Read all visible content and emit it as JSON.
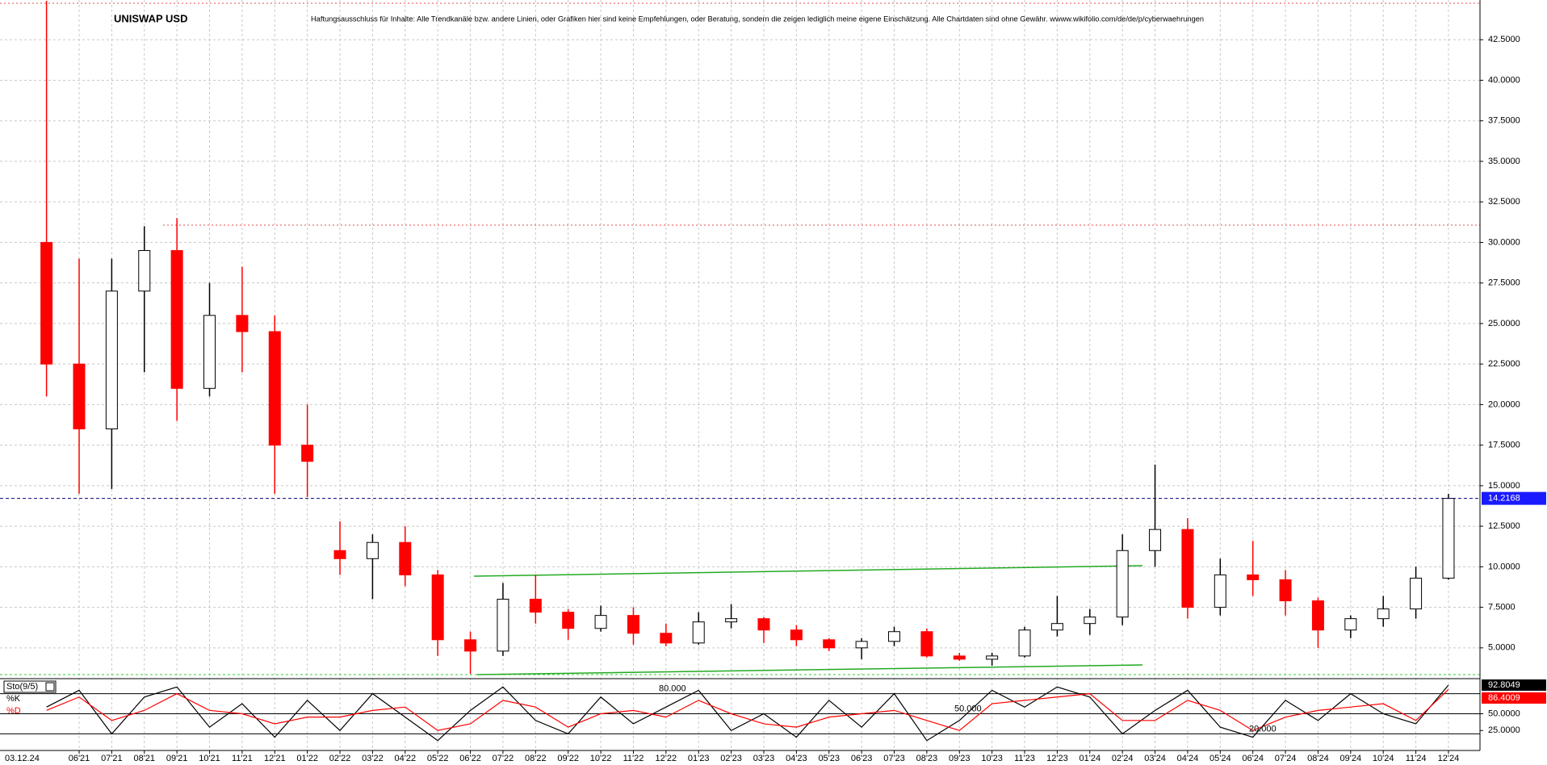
{
  "chart_data": [
    {
      "type": "candlestick",
      "title": "UNISWAP USD",
      "date": "03.12.24",
      "disclaimer": "Haftungsausschluss für Inhalte: Alle Trendkanäle bzw. andere Linien, oder Grafiken hier sind keine Empfehlungen, oder Beratung, sondern die zeigen lediglich meine eigene Einschätzung. Alle Chartdaten sind ohne Gewähr.  wwww.wikifolio.com/de/de/p/cyberwaehrungen",
      "categories": [
        null,
        "06'21",
        "07'21",
        "08'21",
        "09'21",
        "10'21",
        "11'21",
        "12'21",
        "01'22",
        "02'22",
        "03'22",
        "04'22",
        "05'22",
        "06'22",
        "07'22",
        "08'22",
        "09'22",
        "10'22",
        "11'22",
        "12'22",
        "01'23",
        "02'23",
        "03'23",
        "04'23",
        "05'23",
        "06'23",
        "07'23",
        "08'23",
        "09'23",
        "10'23",
        "11'23",
        "12'23",
        "01'24",
        "02'24",
        "03'24",
        "04'24",
        "05'24",
        "06'24",
        "07'24",
        "08'24",
        "09'24",
        "10'24",
        "11'24",
        "12'24"
      ],
      "open": [
        30,
        22.5,
        18.5,
        27,
        29.5,
        21,
        25.5,
        24.5,
        17.5,
        11,
        10.5,
        11.5,
        9.5,
        5.5,
        4.8,
        8,
        7.2,
        6.2,
        7,
        5.9,
        5.3,
        6.6,
        6.8,
        6.1,
        5.5,
        5.0,
        5.4,
        6.0,
        4.5,
        4.3,
        4.5,
        6.1,
        6.5,
        6.9,
        11,
        12.3,
        7.5,
        9.5,
        9.2,
        7.9,
        6.1,
        6.8,
        7.4,
        9.3
      ],
      "high": [
        44.9,
        29,
        29,
        31,
        31.5,
        27.5,
        28.5,
        25.5,
        20,
        12.8,
        12,
        12.5,
        9.8,
        6,
        9,
        9.5,
        7.4,
        7.6,
        7.5,
        6.5,
        7.2,
        7.7,
        6.9,
        6.4,
        5.6,
        5.6,
        6.3,
        6.2,
        4.7,
        4.7,
        6.3,
        8.2,
        7.4,
        12,
        16.3,
        13,
        10.5,
        11.6,
        9.8,
        8.1,
        7,
        8.2,
        10,
        14.5
      ],
      "low": [
        20.5,
        14.5,
        14.8,
        22,
        19,
        20.5,
        22,
        14.5,
        14.3,
        9.5,
        8,
        8.8,
        4.5,
        3.4,
        4.5,
        6.5,
        5.5,
        6,
        5.2,
        5.1,
        5.2,
        6.2,
        5.3,
        5.1,
        4.8,
        4.3,
        5.1,
        4.4,
        4.2,
        3.9,
        4.4,
        5.7,
        5.8,
        6.4,
        10,
        6.8,
        7,
        8.2,
        7,
        5,
        5.6,
        6.3,
        6.8,
        9.2
      ],
      "close": [
        22.5,
        18.5,
        27,
        29.5,
        21,
        25.5,
        24.5,
        17.5,
        16.5,
        10.5,
        11.5,
        9.5,
        5.5,
        4.8,
        8,
        7.2,
        6.2,
        7,
        5.9,
        5.3,
        6.6,
        6.8,
        6.1,
        5.5,
        5.0,
        5.4,
        6.0,
        4.5,
        4.3,
        4.5,
        6.1,
        6.5,
        6.9,
        11,
        12.3,
        7.5,
        9.5,
        9.2,
        7.9,
        6.1,
        6.8,
        7.4,
        9.3,
        14.2168
      ],
      "up_color": "#000000",
      "down_color": "#ff0000",
      "badge_color": "#1a1aff",
      "ylim": [
        3.3,
        44.7
      ],
      "yticks": [
        {
          "value": 5,
          "label": "5.0000"
        },
        {
          "value": 7.5,
          "label": "7.5000"
        },
        {
          "value": 10,
          "label": "10.0000"
        },
        {
          "value": 12.5,
          "label": "12.5000"
        },
        {
          "value": 15,
          "label": "15.0000"
        },
        {
          "value": 17.5,
          "label": "17.5000"
        },
        {
          "value": 20,
          "label": "20.0000"
        },
        {
          "value": 22.5,
          "label": "22.5000"
        },
        {
          "value": 25,
          "label": "25.0000"
        },
        {
          "value": 27.5,
          "label": "27.5000"
        },
        {
          "value": 30,
          "label": "30.0000"
        },
        {
          "value": 32.5,
          "label": "32.5000"
        },
        {
          "value": 35,
          "label": "35.0000"
        },
        {
          "value": 37.5,
          "label": "37.5000"
        },
        {
          "value": 40,
          "label": "40.0000"
        },
        {
          "value": 42.5,
          "label": "42.5000"
        }
      ],
      "grid": true
    },
    {
      "type": "line",
      "title": "Sto(9/5)",
      "series": [
        {
          "name": "%K",
          "color": "#000000",
          "values": [
            60,
            85,
            20,
            75,
            90,
            30,
            65,
            15,
            70,
            25,
            80,
            45,
            10,
            55,
            90,
            40,
            20,
            75,
            35,
            60,
            85,
            25,
            50,
            15,
            70,
            30,
            80,
            10,
            40,
            85,
            60,
            90,
            75,
            20,
            55,
            85,
            30,
            15,
            70,
            40,
            80,
            50,
            35,
            92.8049
          ]
        },
        {
          "name": "%D",
          "color": "#ff0000",
          "values": [
            55,
            75,
            40,
            55,
            80,
            55,
            50,
            35,
            45,
            45,
            55,
            60,
            25,
            35,
            70,
            60,
            30,
            50,
            55,
            45,
            70,
            50,
            35,
            30,
            45,
            50,
            55,
            40,
            25,
            65,
            70,
            75,
            80,
            40,
            40,
            70,
            55,
            25,
            45,
            55,
            60,
            65,
            40,
            86.4009
          ]
        }
      ],
      "levels": [
        {
          "value": 80,
          "label": "80.000"
        },
        {
          "value": 50,
          "label": "50.000"
        },
        {
          "value": 20,
          "label": "20.000"
        }
      ],
      "ylim": [
        0,
        100
      ],
      "yticks": [
        {
          "value": 25,
          "label": "25.0000"
        },
        {
          "value": 50,
          "label": "50.0000"
        }
      ]
    }
  ]
}
